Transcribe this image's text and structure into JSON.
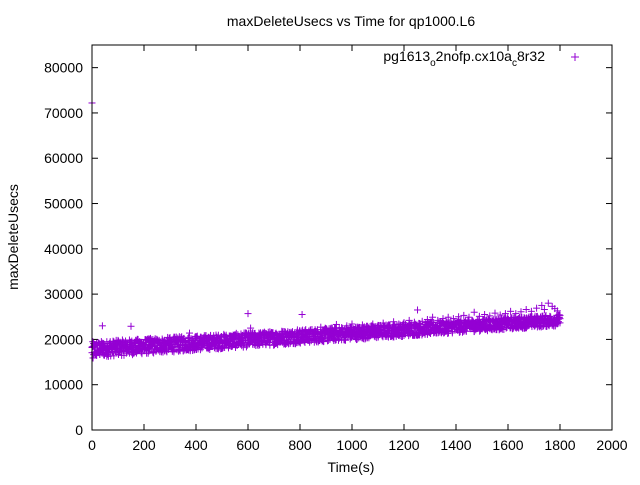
{
  "chart_data": {
    "type": "scatter",
    "title": "maxDeleteUsecs vs Time for qp1000.L6",
    "xlabel": "Time(s)",
    "ylabel": "maxDeleteUsecs",
    "xlim": [
      0,
      2000
    ],
    "ylim": [
      0,
      85000
    ],
    "x_ticks": [
      0,
      200,
      400,
      600,
      800,
      1000,
      1200,
      1400,
      1600,
      1800,
      2000
    ],
    "y_ticks": [
      0,
      10000,
      20000,
      30000,
      40000,
      50000,
      60000,
      70000,
      80000
    ],
    "legend_position": "top-right",
    "marker": "plus",
    "color": "#9400d3",
    "series": [
      {
        "name": "pg1613_o2nofp.cx10a_c8r32",
        "legend_parts": [
          {
            "text": "pg1613",
            "sub": false
          },
          {
            "text": "o",
            "sub": true
          },
          {
            "text": "2nofp.cx10a",
            "sub": false
          },
          {
            "text": "c",
            "sub": true
          },
          {
            "text": "8r32",
            "sub": false
          }
        ],
        "points": [
          [
            0,
            72200
          ],
          [
            4,
            15900
          ],
          [
            10,
            17000
          ],
          [
            20,
            17400
          ],
          [
            30,
            18100
          ],
          [
            40,
            23000
          ],
          [
            50,
            17600
          ],
          [
            60,
            18200
          ],
          [
            70,
            19500
          ],
          [
            80,
            17300
          ],
          [
            90,
            18000
          ],
          [
            100,
            19800
          ],
          [
            110,
            17800
          ],
          [
            120,
            18400
          ],
          [
            130,
            18000
          ],
          [
            150,
            22900
          ],
          [
            160,
            18500
          ],
          [
            175,
            17900
          ],
          [
            190,
            19300
          ],
          [
            205,
            18100
          ],
          [
            220,
            18700
          ],
          [
            240,
            18500
          ],
          [
            260,
            19000
          ],
          [
            280,
            18600
          ],
          [
            300,
            19300
          ],
          [
            320,
            18800
          ],
          [
            340,
            19800
          ],
          [
            360,
            19000
          ],
          [
            375,
            21400
          ],
          [
            390,
            19300
          ],
          [
            410,
            19000
          ],
          [
            430,
            19500
          ],
          [
            450,
            19800
          ],
          [
            470,
            19400
          ],
          [
            490,
            20100
          ],
          [
            510,
            19700
          ],
          [
            530,
            20000
          ],
          [
            550,
            20600
          ],
          [
            570,
            20000
          ],
          [
            590,
            20300
          ],
          [
            600,
            25700
          ],
          [
            610,
            22500
          ],
          [
            630,
            20500
          ],
          [
            650,
            20800
          ],
          [
            670,
            21300
          ],
          [
            690,
            20700
          ],
          [
            710,
            21100
          ],
          [
            730,
            21800
          ],
          [
            750,
            21200
          ],
          [
            770,
            21500
          ],
          [
            790,
            22100
          ],
          [
            808,
            25500
          ],
          [
            820,
            21500
          ],
          [
            840,
            22000
          ],
          [
            860,
            21800
          ],
          [
            880,
            22700
          ],
          [
            900,
            22200
          ],
          [
            920,
            22500
          ],
          [
            940,
            23300
          ],
          [
            960,
            22600
          ],
          [
            980,
            23000
          ],
          [
            1000,
            23400
          ],
          [
            1020,
            22700
          ],
          [
            1040,
            23200
          ],
          [
            1060,
            22900
          ],
          [
            1080,
            23400
          ],
          [
            1100,
            23100
          ],
          [
            1120,
            23600
          ],
          [
            1140,
            23200
          ],
          [
            1160,
            23900
          ],
          [
            1180,
            23400
          ],
          [
            1200,
            23700
          ],
          [
            1220,
            24200
          ],
          [
            1240,
            23800
          ],
          [
            1252,
            26500
          ],
          [
            1270,
            24000
          ],
          [
            1290,
            24400
          ],
          [
            1310,
            24900
          ],
          [
            1330,
            24200
          ],
          [
            1350,
            24600
          ],
          [
            1370,
            24900
          ],
          [
            1390,
            24600
          ],
          [
            1410,
            25000
          ],
          [
            1430,
            25300
          ],
          [
            1450,
            24900
          ],
          [
            1470,
            26000
          ],
          [
            1490,
            25100
          ],
          [
            1510,
            25500
          ],
          [
            1530,
            25200
          ],
          [
            1550,
            25800
          ],
          [
            1570,
            25400
          ],
          [
            1590,
            25700
          ],
          [
            1610,
            26200
          ],
          [
            1630,
            25700
          ],
          [
            1650,
            26100
          ],
          [
            1670,
            26600
          ],
          [
            1690,
            26200
          ],
          [
            1710,
            26900
          ],
          [
            1730,
            27500
          ],
          [
            1740,
            26600
          ],
          [
            1755,
            28000
          ],
          [
            1770,
            27300
          ],
          [
            1780,
            26800
          ],
          [
            1790,
            26300
          ]
        ],
        "band": {
          "x_start": 0,
          "x_end": 1800,
          "x_step": 3,
          "low_start": 16000,
          "low_end": 23000,
          "high_start": 19500,
          "high_end": 25500
        }
      }
    ]
  }
}
